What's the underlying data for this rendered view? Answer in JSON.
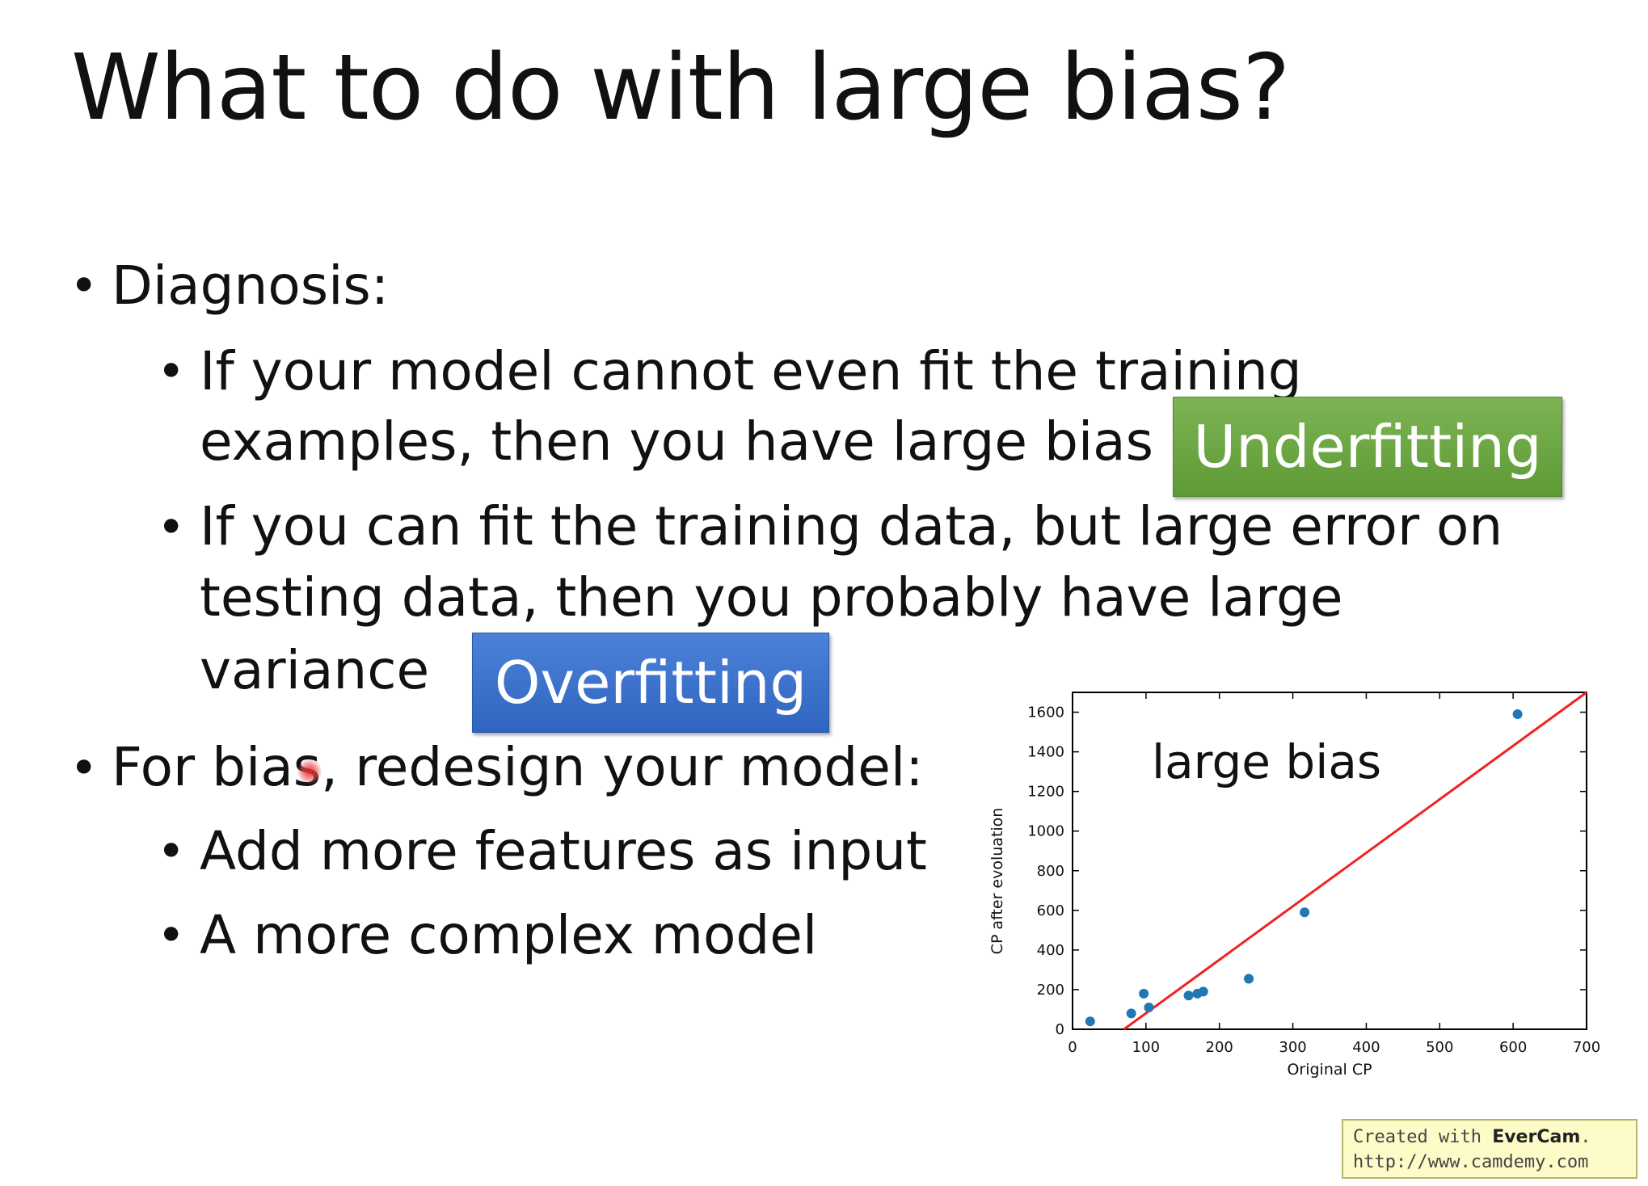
{
  "slide": {
    "title": "What to do with large bias?",
    "diagnosis": {
      "heading": "Diagnosis:",
      "point1_line1": "If your model cannot even fit the training",
      "point1_line2": "examples, then you have large bias",
      "underfitting_label": "Underfitting",
      "point2_line1": "If you can fit the training data, but large error on",
      "point2_line2": "testing data, then you probably have large",
      "point2_line3": "variance",
      "overfitting_label": "Overfitting"
    },
    "remedy": {
      "heading": "For bias, redesign your model:",
      "item1": "Add more features as input",
      "item2": "A more complex model"
    },
    "bullet_glyph": "•"
  },
  "chart_data": {
    "type": "scatter",
    "annotation": "large bias",
    "xlabel": "Original CP",
    "ylabel": "CP after evoluation",
    "xlim": [
      0,
      700
    ],
    "ylim": [
      0,
      1700
    ],
    "xticks": [
      0,
      100,
      200,
      300,
      400,
      500,
      600,
      700
    ],
    "yticks": [
      0,
      200,
      400,
      600,
      800,
      1000,
      1200,
      1400,
      1600
    ],
    "points": [
      {
        "x": 24,
        "y": 40
      },
      {
        "x": 80,
        "y": 80
      },
      {
        "x": 97,
        "y": 180
      },
      {
        "x": 104,
        "y": 110
      },
      {
        "x": 158,
        "y": 170
      },
      {
        "x": 170,
        "y": 180
      },
      {
        "x": 178,
        "y": 190
      },
      {
        "x": 240,
        "y": 255
      },
      {
        "x": 316,
        "y": 590
      },
      {
        "x": 606,
        "y": 1590
      }
    ],
    "fit_line": {
      "x1": 70,
      "y1": 0,
      "x2": 700,
      "y2": 1700
    },
    "point_color": "#1f77b4",
    "line_color": "#ee2222"
  },
  "watermark": {
    "prefix": "Created with ",
    "brand": "EverCam",
    "suffix": ".",
    "url": "http://www.camdemy.com"
  }
}
